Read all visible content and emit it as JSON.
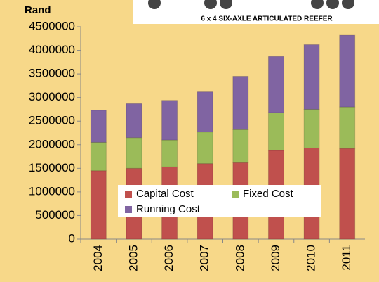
{
  "chart_data": {
    "type": "bar",
    "stacked": true,
    "y_label": "Rand",
    "annotation": "6 x 4  SIX-AXLE ARTICULATED REEFER",
    "categories": [
      "2004",
      "2005",
      "2006",
      "2007",
      "2008",
      "2009",
      "2010",
      "2011"
    ],
    "series": [
      {
        "name": "Capital Cost",
        "color": "#c0504d",
        "values": [
          1450000,
          1500000,
          1530000,
          1600000,
          1620000,
          1880000,
          1930000,
          1920000
        ]
      },
      {
        "name": "Fixed Cost",
        "color": "#9bbb59",
        "values": [
          600000,
          650000,
          570000,
          670000,
          700000,
          800000,
          820000,
          880000
        ]
      },
      {
        "name": "Running Cost",
        "color": "#8064a2",
        "values": [
          680000,
          720000,
          840000,
          850000,
          1130000,
          1190000,
          1370000,
          1520000
        ]
      }
    ],
    "ylim": [
      0,
      4500000
    ],
    "yticks": [
      0,
      500000,
      1000000,
      1500000,
      2000000,
      2500000,
      3000000,
      3500000,
      4000000,
      4500000
    ]
  }
}
